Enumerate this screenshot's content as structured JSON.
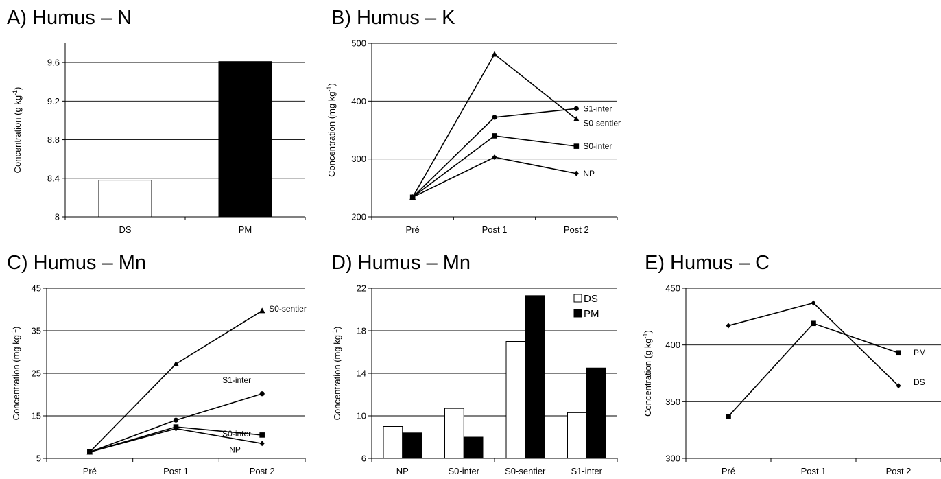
{
  "chart_data": [
    {
      "id": "A",
      "type": "bar",
      "title": "A) Humus – N",
      "ylabel": "Concentration (g kg",
      "ylabel_sup": "-1",
      "ylabel_tail": ")",
      "categories": [
        "DS",
        "PM"
      ],
      "series": [
        {
          "values": [
            8.38,
            9.61
          ],
          "fills": [
            "#ffffff",
            "#000000"
          ]
        }
      ],
      "ylim": [
        8,
        9.8
      ],
      "yticks": [
        8,
        8.4,
        8.8,
        9.2,
        9.6
      ],
      "ytick_labels": [
        "8",
        "8.4",
        "8.8",
        "9.2",
        "9.6"
      ],
      "grid": true,
      "legend": "none"
    },
    {
      "id": "B",
      "type": "line",
      "title": "B) Humus – K",
      "ylabel": "Concentration (mg kg",
      "ylabel_sup": "-1",
      "ylabel_tail": ")",
      "categories": [
        "Pré",
        "Post 1",
        "Post 2"
      ],
      "series": [
        {
          "name": "S1-inter",
          "marker": "circle",
          "values": [
            234,
            372,
            387
          ]
        },
        {
          "name": "S0-sentier",
          "marker": "triangle",
          "values": [
            234,
            481,
            369
          ]
        },
        {
          "name": "S0-inter",
          "marker": "square",
          "values": [
            234,
            340,
            322
          ]
        },
        {
          "name": "NP",
          "marker": "diamond",
          "values": [
            234,
            303,
            275
          ]
        }
      ],
      "ylim": [
        200,
        500
      ],
      "yticks": [
        200,
        300,
        400,
        500
      ],
      "ytick_labels": [
        "200",
        "300",
        "400",
        "500"
      ],
      "grid": true,
      "legend": "end-of-line labels"
    },
    {
      "id": "C",
      "type": "line",
      "title": "C) Humus – Mn",
      "ylabel": "Concentration (mg kg",
      "ylabel_sup": "-1",
      "ylabel_tail": ")",
      "categories": [
        "Pré",
        "Post 1",
        "Post 2"
      ],
      "series": [
        {
          "name": "S0-sentier",
          "marker": "triangle",
          "values": [
            6.5,
            27.2,
            39.7
          ]
        },
        {
          "name": "S1-inter",
          "marker": "circle",
          "values": [
            6.5,
            14.0,
            20.2
          ]
        },
        {
          "name": "S0-inter",
          "marker": "square",
          "values": [
            6.5,
            12.4,
            10.5
          ]
        },
        {
          "name": "NP",
          "marker": "diamond",
          "values": [
            6.5,
            12.0,
            8.5
          ]
        }
      ],
      "ylim": [
        5,
        45
      ],
      "yticks": [
        5,
        15,
        25,
        35,
        45
      ],
      "ytick_labels": [
        "5",
        "15",
        "25",
        "35",
        "45"
      ],
      "grid": true,
      "legend": "end-of-line labels"
    },
    {
      "id": "D",
      "type": "bar",
      "title": "D) Humus – Mn",
      "ylabel": "Concentration (mg kg",
      "ylabel_sup": "-1",
      "ylabel_tail": ")",
      "categories": [
        "NP",
        "S0-inter",
        "S0-sentier",
        "S1-inter"
      ],
      "series": [
        {
          "name": "DS",
          "values": [
            9.0,
            10.7,
            17.0,
            10.3
          ],
          "fill": "#ffffff"
        },
        {
          "name": "PM",
          "values": [
            8.4,
            8.0,
            21.3,
            14.5
          ],
          "fill": "#000000"
        }
      ],
      "ylim": [
        6,
        22
      ],
      "yticks": [
        6,
        10,
        14,
        18,
        22
      ],
      "ytick_labels": [
        "6",
        "10",
        "14",
        "18",
        "22"
      ],
      "grid": true,
      "legend": "top-right"
    },
    {
      "id": "E",
      "type": "line",
      "title": "E) Humus – C",
      "ylabel": "Concentration (g kg",
      "ylabel_sup": "-1",
      "ylabel_tail": ")",
      "categories": [
        "Pré",
        "Post 1",
        "Post 2"
      ],
      "series": [
        {
          "name": "PM",
          "marker": "square",
          "values": [
            337,
            419,
            393
          ]
        },
        {
          "name": "DS",
          "marker": "diamond",
          "values": [
            417,
            437,
            364
          ]
        }
      ],
      "ylim": [
        300,
        450
      ],
      "yticks": [
        300,
        350,
        400,
        450
      ],
      "ytick_labels": [
        "300",
        "350",
        "400",
        "450"
      ],
      "grid": true,
      "legend": "end-of-line labels"
    }
  ]
}
